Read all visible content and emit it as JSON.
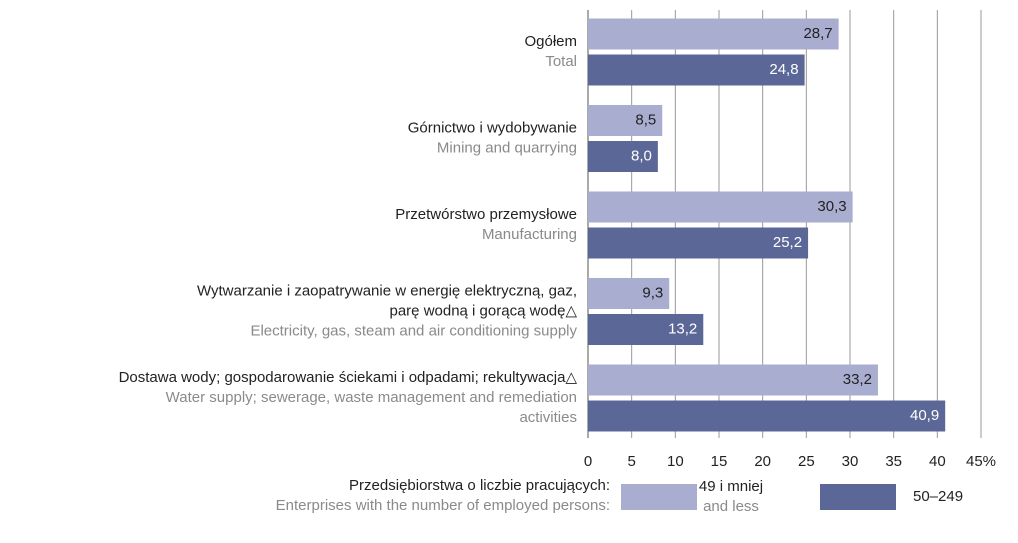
{
  "chart_data": {
    "type": "bar",
    "orientation": "horizontal",
    "categories": [
      [
        "Ogółem"
      ],
      [
        "Górnictwo i wydobywanie"
      ],
      [
        "Przetwórstwo przemysłowe"
      ],
      [
        "Wytwarzanie i zaopatrywanie w energię elektryczną, gaz,",
        "parę wodną i gorącą wodę△"
      ],
      [
        "Dostawa wody; gospodarowanie ściekami i odpadami; rekultywacja△"
      ]
    ],
    "categories_en": [
      [
        "Total"
      ],
      [
        "Mining and quarrying"
      ],
      [
        "Manufacturing"
      ],
      [
        "Electricity, gas, steam and air conditioning supply"
      ],
      [
        "Water supply; sewerage, waste management and remediation",
        "activities"
      ]
    ],
    "series": [
      {
        "name": "49 i mniej",
        "name_en": "and less",
        "color": "#a9aed0",
        "label_color": "#222222",
        "values": [
          28.7,
          8.5,
          30.3,
          9.3,
          33.2
        ],
        "value_labels": [
          "28,7",
          "8,5",
          "30,3",
          "9,3",
          "33,2"
        ]
      },
      {
        "name": "50–249",
        "color": "#5b6897",
        "label_color": "#ffffff",
        "values": [
          24.8,
          8.0,
          25.2,
          13.2,
          40.9
        ],
        "value_labels": [
          "24,8",
          "8,0",
          "25,2",
          "13,2",
          "40,9"
        ]
      }
    ],
    "xlim": [
      0,
      45
    ],
    "xticks": [
      0,
      5,
      10,
      15,
      20,
      25,
      30,
      35,
      40,
      {
        "value": 45,
        "label": "45%"
      }
    ],
    "grid": true,
    "legend_title": "Przedsiębiorstwa o liczbie pracujących:",
    "legend_title_en": "Enterprises with the number of employed persons:"
  }
}
